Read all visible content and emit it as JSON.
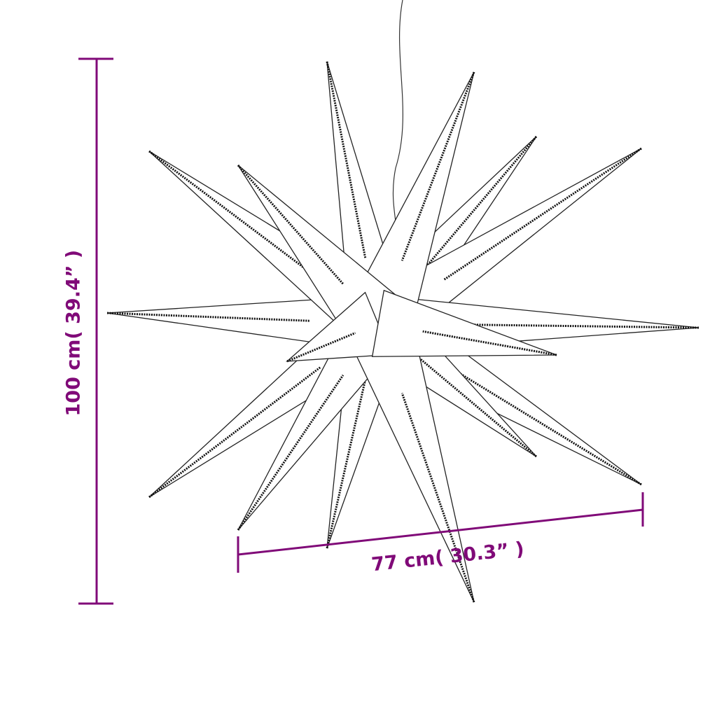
{
  "dimensions": {
    "height_label": "100 cm( 39.4” )",
    "width_label": "77 cm( 30.3” )"
  },
  "colors": {
    "dimension": "#800a78",
    "outline": "#222222"
  }
}
